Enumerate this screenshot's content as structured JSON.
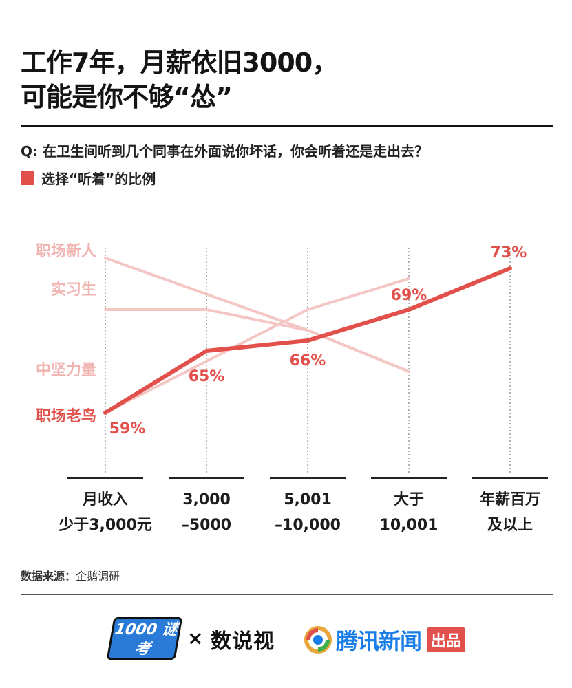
{
  "title": {
    "line1": "工作7年，月薪依旧3000，",
    "line2": "可能是你不够“怂”"
  },
  "question": "Q: 在卫生间听到几个同事在外面说你坏话，你会听着还是走出去？",
  "legend": {
    "label": "选择“听着”的比例",
    "color": "#e2504b"
  },
  "chart_data": {
    "type": "line",
    "categories": [
      [
        "月收入",
        "少于3,000元"
      ],
      [
        "3,000",
        "–5000"
      ],
      [
        "5,001",
        "–10,000"
      ],
      [
        "大于",
        "10,001"
      ],
      [
        "年薪百万",
        "及以上"
      ]
    ],
    "series": [
      {
        "name": "职场新人",
        "values": [
          74,
          null,
          67,
          63,
          null
        ],
        "color": "#f4c7c5",
        "highlight": false
      },
      {
        "name": "实习生",
        "values": [
          69,
          69,
          67,
          63,
          null
        ],
        "color": "#f4c7c5",
        "highlight": false
      },
      {
        "name": "中坚力量",
        "values": [
          59,
          64,
          69,
          72,
          null
        ],
        "color": "#f4c7c5",
        "highlight": false
      },
      {
        "name": "职场老鸟",
        "values": [
          59,
          65,
          66,
          69,
          73
        ],
        "labels": [
          "59%",
          "65%",
          "66%",
          "69%",
          "73%"
        ],
        "color": "#e2504b",
        "highlight": true
      }
    ],
    "ylim": [
      56,
      76
    ],
    "grid": "vertical dotted",
    "legend": "top-left"
  },
  "footer": {
    "source_label": "数据来源：",
    "source_value": "企鹅调研",
    "brand_show": "1000 谜考",
    "brand_x": "×",
    "brand_shushi": "数说视",
    "brand_tencent": "腾讯新闻",
    "brand_badge": "出品"
  }
}
